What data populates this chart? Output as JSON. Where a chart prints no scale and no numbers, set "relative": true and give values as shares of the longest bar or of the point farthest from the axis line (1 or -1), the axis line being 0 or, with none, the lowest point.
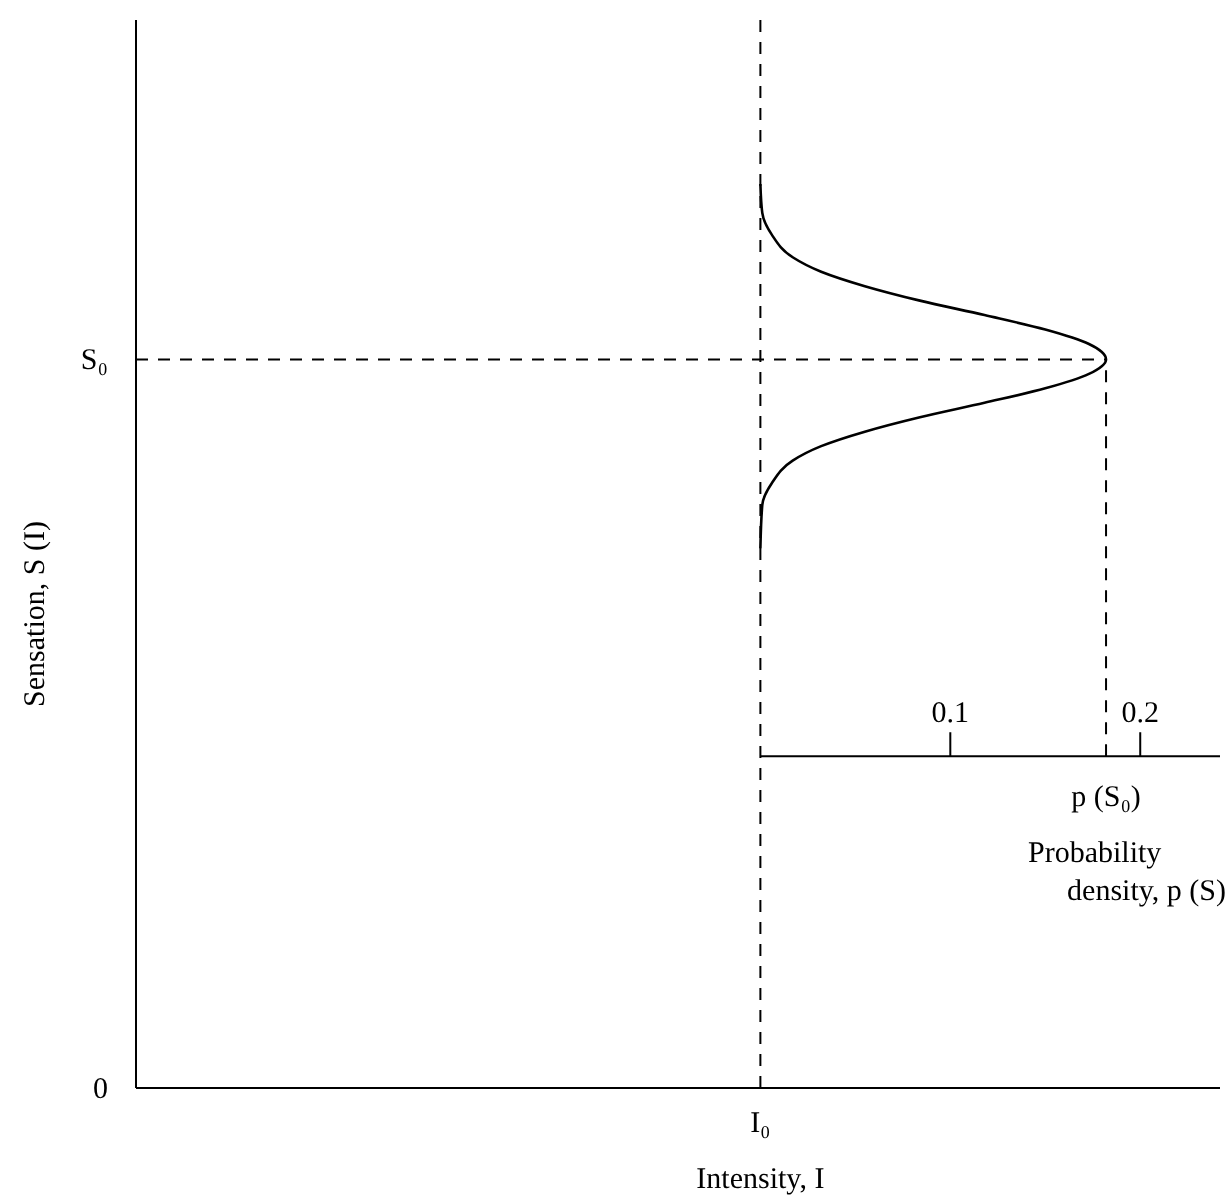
{
  "chart_data": {
    "type": "line",
    "relative": true,
    "xlabel": "Intensity, I",
    "xlim": [
      0,
      0.242
    ],
    "xticks": [
      0.1,
      0.2
    ],
    "series": [
      {
        "color": "#000000",
        "x": [
          0,
          0.001,
          0.006,
          0.017,
          0.032,
          0.055,
          0.084,
          0.118,
          0.15,
          0.173,
          0.182,
          0.173,
          0.15,
          0.118,
          0.084,
          0.055,
          0.032,
          0.017,
          0.006,
          0.001,
          0
        ],
        "values": [
          0.597,
          0.645,
          0.669,
          0.694,
          0.71,
          0.726,
          0.742,
          0.758,
          0.774,
          0.79,
          0.806,
          0.823,
          0.839,
          0.855,
          0.871,
          0.887,
          0.903,
          0.919,
          0.944,
          0.968,
          1
        ]
      }
    ],
    "ref_lines": [
      {
        "axis": "x",
        "value": 0,
        "label": "I₀",
        "line_style": "dashed"
      },
      {
        "axis": "y",
        "value": 0.806,
        "label": "S₀",
        "line_style": "dashed"
      },
      {
        "axis": "x",
        "value": 0.182,
        "label": "p (S₀)",
        "line_style": "dashed"
      }
    ],
    "annotations": [
      "0",
      "Probability density, p (S)",
      "Sensation, S (I)"
    ],
    "line_style": "solid"
  }
}
